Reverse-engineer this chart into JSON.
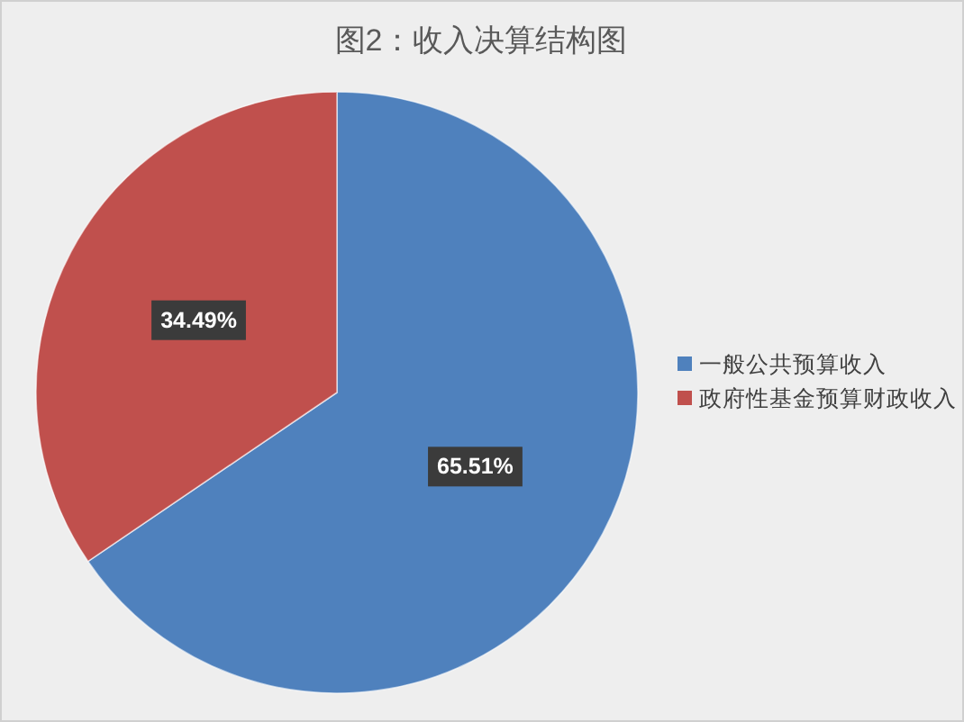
{
  "chart_data": {
    "type": "pie",
    "title": "图2：收入决算结构图",
    "categories": [
      "一般公共预算收入",
      "政府性基金预算财政收入"
    ],
    "values": [
      65.51,
      34.49
    ],
    "colors": [
      "#4f81bd",
      "#c0504d"
    ],
    "value_labels": [
      "65.51%",
      "34.49%"
    ],
    "legend": "right"
  }
}
